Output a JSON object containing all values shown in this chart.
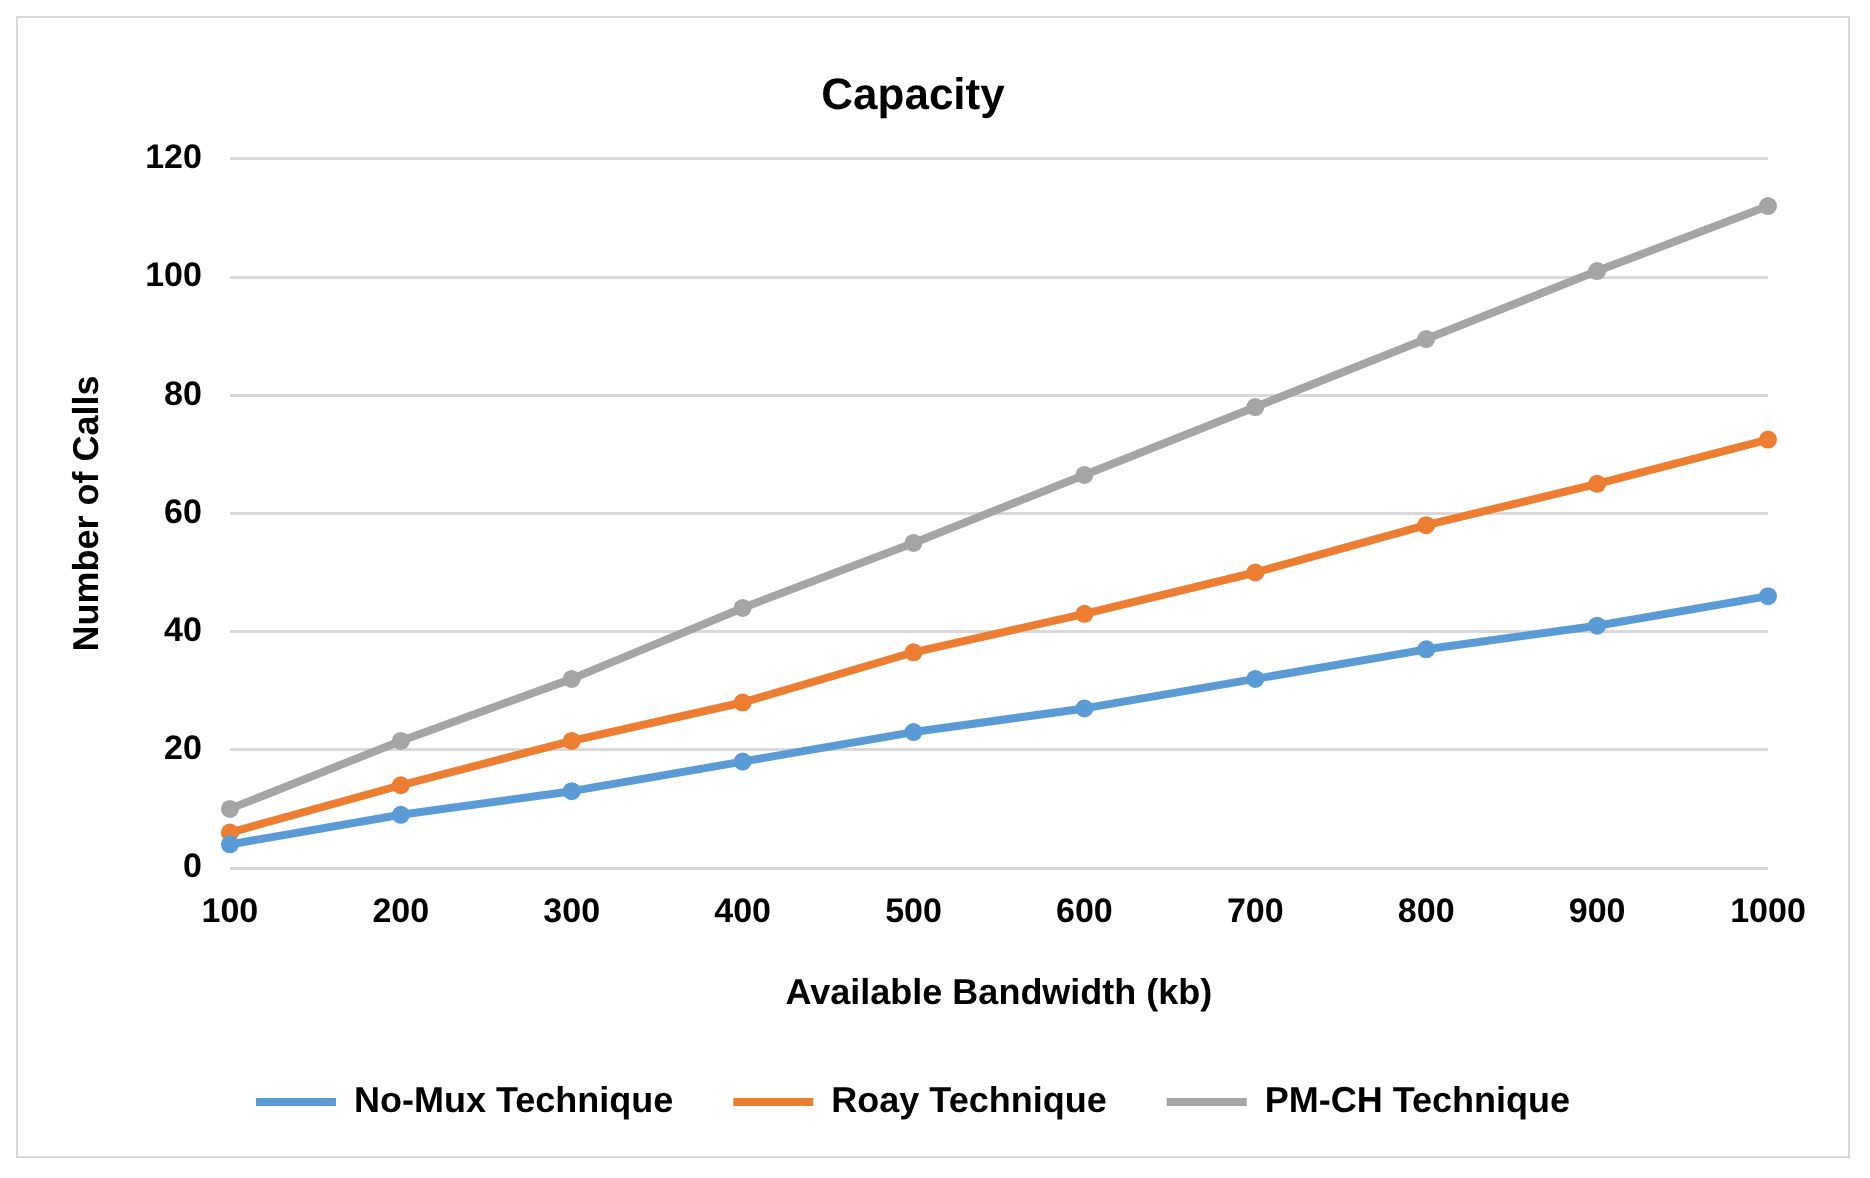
{
  "chart_data": {
    "type": "line",
    "title": "Capacity",
    "xlabel": "Available Bandwidth (kb)",
    "ylabel": "Number of Calls",
    "categories": [
      "100",
      "200",
      "300",
      "400",
      "500",
      "600",
      "700",
      "800",
      "900",
      "1000"
    ],
    "series": [
      {
        "name": "No-Mux Technique",
        "color": "#5b9bd5",
        "values": [
          4,
          9,
          13,
          18,
          23,
          27,
          32,
          37,
          41,
          46
        ]
      },
      {
        "name": "Roay Technique",
        "color": "#ed7d31",
        "values": [
          6,
          14,
          21.5,
          28,
          36.5,
          43,
          50,
          58,
          65,
          72.5
        ]
      },
      {
        "name": "PM-CH Technique",
        "color": "#a5a5a5",
        "values": [
          10,
          21.5,
          32,
          44,
          55,
          66.5,
          78,
          89.5,
          101,
          112
        ]
      }
    ],
    "ylim": [
      0,
      120
    ],
    "yticks": [
      0,
      20,
      40,
      60,
      80,
      100,
      120
    ],
    "grid": "y",
    "legend": "bottom",
    "marker": "circle",
    "line_style": "solid"
  }
}
